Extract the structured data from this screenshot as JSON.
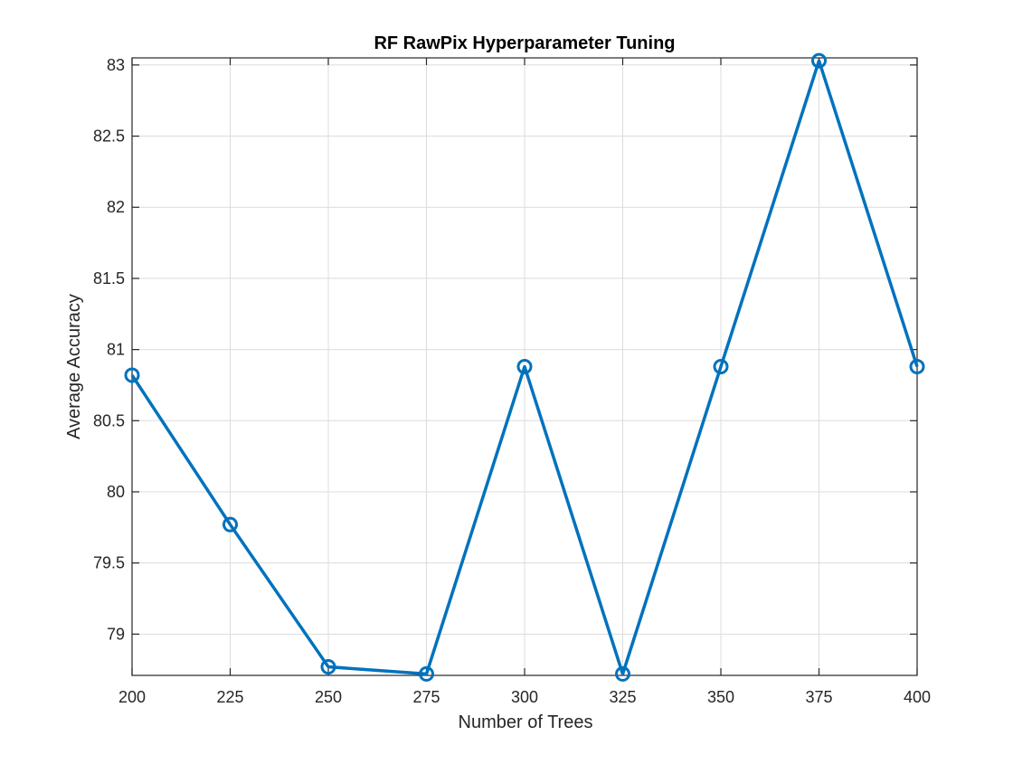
{
  "chart_data": {
    "type": "line",
    "title": "RF RawPix Hyperparameter Tuning",
    "xlabel": "Number of Trees",
    "ylabel": "Average Accuracy",
    "xlim": [
      200,
      400
    ],
    "ylim": [
      78.71,
      83.05
    ],
    "xticks": [
      200,
      225,
      250,
      275,
      300,
      325,
      350,
      375,
      400
    ],
    "xtick_labels": [
      "200",
      "225",
      "250",
      "275",
      "300",
      "325",
      "350",
      "375",
      "400"
    ],
    "yticks": [
      79,
      79.5,
      80,
      80.5,
      81,
      81.5,
      82,
      82.5,
      83
    ],
    "ytick_labels": [
      "79",
      "79.5",
      "80",
      "80.5",
      "81",
      "81.5",
      "82",
      "82.5",
      "83"
    ],
    "grid": true,
    "legend": "none",
    "series": [
      {
        "color": "#0072BD",
        "marker": "circle",
        "x": [
          200,
          225,
          250,
          275,
          300,
          325,
          350,
          375,
          400
        ],
        "y": [
          80.82,
          79.77,
          78.77,
          78.72,
          80.88,
          78.72,
          80.88,
          83.03,
          80.88
        ]
      }
    ]
  }
}
